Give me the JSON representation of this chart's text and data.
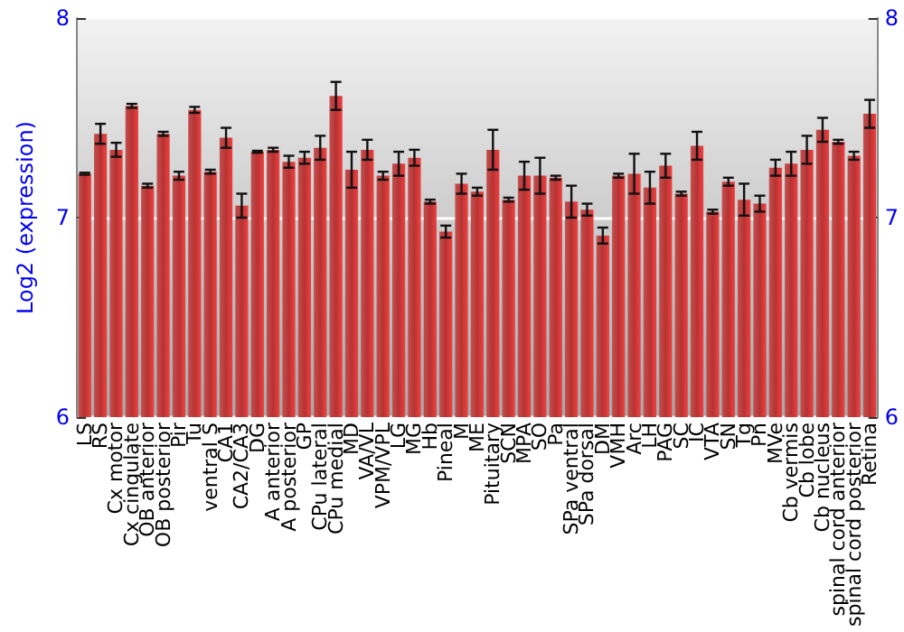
{
  "chart_data": {
    "type": "bar",
    "ylabel": "Log2 (expression)",
    "categories": [
      "LS",
      "RS",
      "Cx motor",
      "Cx cingulate",
      "OB anterior",
      "OB posterior",
      "Pir",
      "Tu",
      "ventral S",
      "CA1",
      "CA2/CA3",
      "DG",
      "A anterior",
      "A posterior",
      "GP",
      "CPu lateral",
      "CPu medial",
      "MD",
      "VA/VL",
      "VPM/VPL",
      "LG",
      "MG",
      "Hb",
      "Pineal",
      "M",
      "ME",
      "Pituitary",
      "SCN",
      "MPA",
      "SO",
      "Pa",
      "SPa ventral",
      "SPa dorsal",
      "DM",
      "VMH",
      "Arc",
      "LH",
      "PAG",
      "SC",
      "IC",
      "VTA",
      "SN",
      "Tg",
      "Pn",
      "MVe",
      "Cb vermis",
      "Cb lobe",
      "Cb nucleus",
      "spinal cord anterior",
      "spinal cord posterior",
      "Retina"
    ],
    "series": [
      {
        "color": "#b83232",
        "values": [
          7.22,
          7.42,
          7.34,
          7.56,
          7.16,
          7.42,
          7.21,
          7.54,
          7.23,
          7.4,
          7.06,
          7.33,
          7.34,
          7.28,
          7.3,
          7.35,
          7.61,
          7.24,
          7.34,
          7.21,
          7.27,
          7.3,
          7.08,
          6.93,
          7.17,
          7.13,
          7.34,
          7.09,
          7.21,
          7.21,
          7.2,
          7.08,
          7.04,
          6.91,
          7.21,
          7.22,
          7.15,
          7.26,
          7.12,
          7.36,
          7.03,
          7.18,
          7.09,
          7.07,
          7.25,
          7.27,
          7.34,
          7.44,
          7.38,
          7.31,
          7.52
        ],
        "errors": [
          0.005,
          0.05,
          0.035,
          0.01,
          0.01,
          0.01,
          0.02,
          0.015,
          0.01,
          0.05,
          0.06,
          0.005,
          0.01,
          0.03,
          0.03,
          0.06,
          0.07,
          0.09,
          0.05,
          0.02,
          0.06,
          0.04,
          0.01,
          0.03,
          0.05,
          0.02,
          0.1,
          0.01,
          0.07,
          0.09,
          0.01,
          0.08,
          0.03,
          0.04,
          0.01,
          0.1,
          0.08,
          0.06,
          0.01,
          0.07,
          0.01,
          0.02,
          0.08,
          0.04,
          0.04,
          0.06,
          0.07,
          0.06,
          0.01,
          0.02,
          0.07
        ]
      }
    ],
    "ylim": [
      6,
      8
    ],
    "yticks": [
      6,
      7,
      8
    ],
    "y2lim": [
      6,
      8
    ],
    "y2ticks": [
      6,
      7,
      8
    ],
    "grid": "y"
  }
}
